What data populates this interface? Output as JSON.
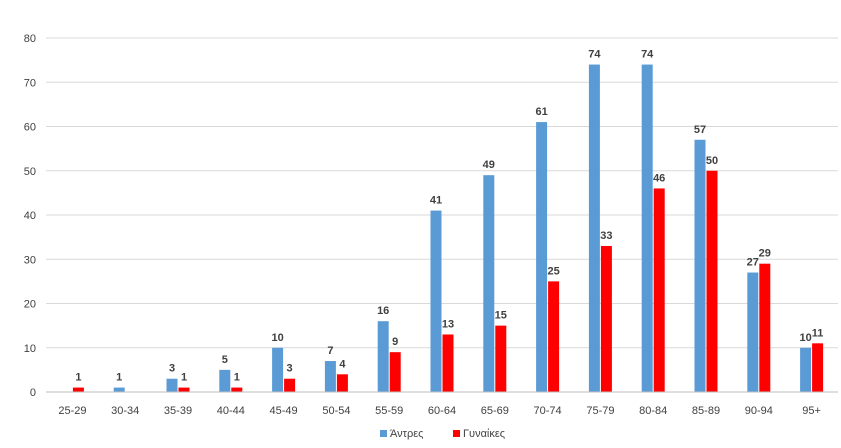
{
  "chart_data": {
    "type": "bar",
    "categories": [
      "25-29",
      "30-34",
      "35-39",
      "40-44",
      "45-49",
      "50-54",
      "55-59",
      "60-64",
      "65-69",
      "70-74",
      "75-79",
      "80-84",
      "85-89",
      "90-94",
      "95+"
    ],
    "series": [
      {
        "name": "Άντρες",
        "color": "#5b9bd5",
        "values": [
          null,
          1,
          3,
          5,
          10,
          7,
          16,
          41,
          49,
          61,
          74,
          74,
          57,
          27,
          10
        ]
      },
      {
        "name": "Γυναίκες",
        "color": "#ff0000",
        "values": [
          1,
          null,
          1,
          1,
          3,
          4,
          9,
          13,
          15,
          25,
          33,
          46,
          50,
          29,
          11
        ]
      }
    ],
    "ylim": [
      0,
      80
    ],
    "yticks": [
      0,
      10,
      20,
      30,
      40,
      50,
      60,
      70,
      80
    ],
    "grid": true,
    "legend": "bottom-center",
    "gridColor": "#d9d9d9",
    "axisColor": "#bfbfbf"
  }
}
